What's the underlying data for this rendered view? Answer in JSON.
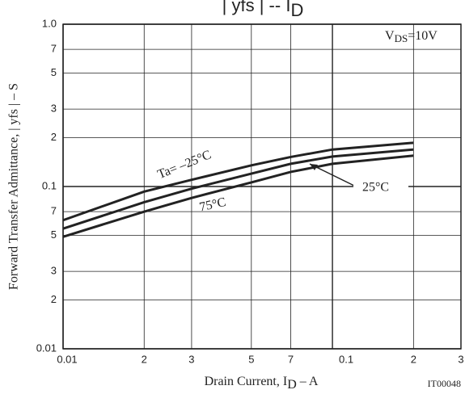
{
  "chart_data": {
    "type": "line",
    "title": "| yfs |  --  I",
    "title_sub": "D",
    "annotation": {
      "v": "V",
      "sub": "DS",
      "rest": "=10V"
    },
    "xlabel": "Drain Current, I",
    "xlabel_sub": "D",
    "xlabel_unit": "  –  A",
    "ylabel": "Forward Transfer Admittance, | yfs |  –  S",
    "code": "IT00048",
    "log_x": true,
    "log_y": true,
    "grid": true,
    "x": [
      0.01,
      0.02,
      0.03,
      0.05,
      0.07,
      0.1,
      0.2
    ],
    "series": [
      {
        "name": "Ta= –25°C",
        "color": "#222222",
        "values": [
          0.062,
          0.093,
          0.11,
          0.135,
          0.152,
          0.169,
          0.186
        ]
      },
      {
        "name": "25°C",
        "color": "#222222",
        "values": [
          0.055,
          0.08,
          0.097,
          0.12,
          0.138,
          0.153,
          0.169
        ]
      },
      {
        "name": "75°C",
        "color": "#222222",
        "values": [
          0.049,
          0.07,
          0.085,
          0.106,
          0.123,
          0.138,
          0.155
        ]
      }
    ],
    "xlim": [
      0.01,
      0.3
    ],
    "xticks": [
      {
        "value": 0.01,
        "label": "0.01"
      },
      {
        "value": 0.02,
        "label": "2"
      },
      {
        "value": 0.03,
        "label": "3"
      },
      {
        "value": 0.05,
        "label": "5"
      },
      {
        "value": 0.07,
        "label": "7"
      },
      0.1,
      {
        "value": 0.2,
        "label": "2"
      },
      {
        "value": 0.3,
        "label": "3"
      }
    ],
    "ylim": [
      0.01,
      1
    ],
    "yticks": [
      0.01,
      {
        "value": 0.02,
        "label": "2"
      },
      {
        "value": 0.03,
        "label": "3"
      },
      {
        "value": 0.05,
        "label": "5"
      },
      {
        "value": 0.07,
        "label": "7"
      },
      0.1,
      {
        "value": 0.2,
        "label": "2"
      },
      {
        "value": 0.3,
        "label": "3"
      },
      {
        "value": 0.5,
        "label": "5"
      },
      {
        "value": 0.7,
        "label": "7"
      },
      {
        "value": 1,
        "label": "1.0"
      }
    ]
  }
}
